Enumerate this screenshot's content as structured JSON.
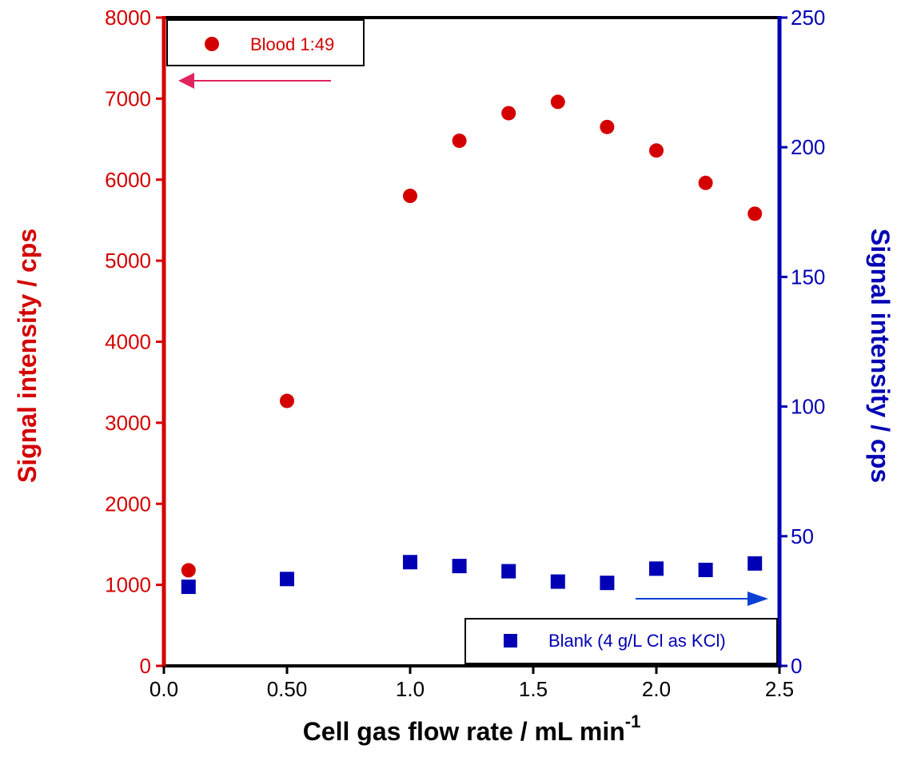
{
  "chart_data": {
    "type": "scatter",
    "xlabel": "Cell gas flow rate / mL min",
    "xlabel_superscript": "-1",
    "y_left_label": "Signal intensity / cps",
    "y_right_label": "Signal intensity / cps",
    "xlim": [
      0.0,
      2.5
    ],
    "y_left_lim": [
      0,
      8000
    ],
    "y_right_lim": [
      0,
      250
    ],
    "x_ticks": [
      {
        "value": 0.0,
        "label": "0.0"
      },
      {
        "value": 0.5,
        "label": "0.50"
      },
      {
        "value": 1.0,
        "label": "1.0"
      },
      {
        "value": 1.5,
        "label": "1.5"
      },
      {
        "value": 2.0,
        "label": "2.0"
      },
      {
        "value": 2.5,
        "label": "2.5"
      }
    ],
    "y_left_ticks": [
      {
        "value": 0,
        "label": "0"
      },
      {
        "value": 1000,
        "label": "1000"
      },
      {
        "value": 2000,
        "label": "2000"
      },
      {
        "value": 3000,
        "label": "3000"
      },
      {
        "value": 4000,
        "label": "4000"
      },
      {
        "value": 5000,
        "label": "5000"
      },
      {
        "value": 6000,
        "label": "6000"
      },
      {
        "value": 7000,
        "label": "7000"
      },
      {
        "value": 8000,
        "label": "8000"
      }
    ],
    "y_right_ticks": [
      {
        "value": 0,
        "label": "0"
      },
      {
        "value": 50,
        "label": "50"
      },
      {
        "value": 100,
        "label": "100"
      },
      {
        "value": 150,
        "label": "150"
      },
      {
        "value": 200,
        "label": "200"
      },
      {
        "value": 250,
        "label": "250"
      }
    ],
    "grid": false,
    "series": [
      {
        "name": "Blood 1:49",
        "axis": "left",
        "marker": "circle",
        "color": "#d40000",
        "x": [
          0.1,
          0.5,
          1.0,
          1.2,
          1.4,
          1.6,
          1.8,
          2.0,
          2.2,
          2.4
        ],
        "y": [
          1180,
          3270,
          5800,
          6480,
          6820,
          6960,
          6650,
          6360,
          5960,
          5580
        ]
      },
      {
        "name": "Blank (4 g/L Cl as KCl)",
        "axis": "right",
        "marker": "square",
        "color": "#0000b4",
        "x": [
          0.1,
          0.5,
          1.0,
          1.2,
          1.4,
          1.6,
          1.8,
          2.0,
          2.2,
          2.4
        ],
        "y": [
          30.5,
          33.5,
          40.0,
          38.5,
          36.5,
          32.5,
          32.0,
          37.5,
          37.0,
          39.5
        ]
      }
    ],
    "legend": [
      {
        "label": "Blood 1:49",
        "placement": "top-left"
      },
      {
        "label": "Blank (4 g/L Cl as KCl)",
        "placement": "bottom-right"
      }
    ],
    "annotations": [
      {
        "type": "arrow",
        "direction": "left",
        "points_to": "left-axis",
        "color": "#e0245e"
      },
      {
        "type": "arrow",
        "direction": "right",
        "points_to": "right-axis",
        "color": "#0a3fd6"
      }
    ],
    "colors": {
      "left_axis": "#d40000",
      "right_axis": "#0000b4",
      "frame": "#000000"
    }
  }
}
